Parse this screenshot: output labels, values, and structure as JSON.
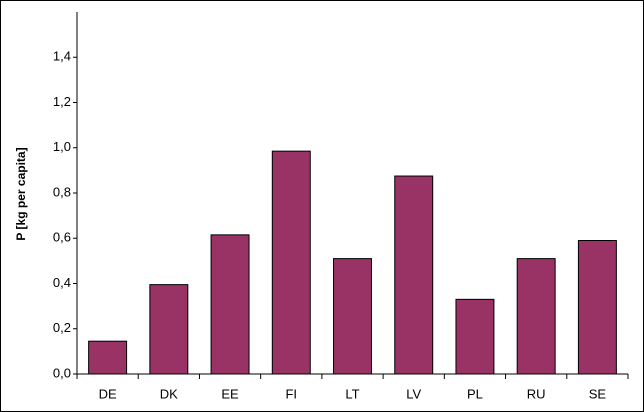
{
  "chart_data": {
    "type": "bar",
    "y_label": "P [kg per capita]",
    "categories": [
      "DE",
      "DK",
      "EE",
      "FI",
      "LT",
      "LV",
      "PL",
      "RU",
      "SE"
    ],
    "values": [
      0.145,
      0.395,
      0.615,
      0.985,
      0.51,
      0.875,
      0.33,
      0.51,
      0.59
    ],
    "color": "#993366",
    "ylim": [
      0,
      1.6
    ],
    "yticks": [
      {
        "value": 0,
        "label": "0,0"
      },
      {
        "value": 0.2,
        "label": "0,2"
      },
      {
        "value": 0.4,
        "label": "0,4"
      },
      {
        "value": 0.6,
        "label": "0,6"
      },
      {
        "value": 0.8,
        "label": "0,8"
      },
      {
        "value": 1.0,
        "label": "1,0"
      },
      {
        "value": 1.2,
        "label": "1,2"
      },
      {
        "value": 1.4,
        "label": "1,4"
      }
    ],
    "grid": false
  }
}
